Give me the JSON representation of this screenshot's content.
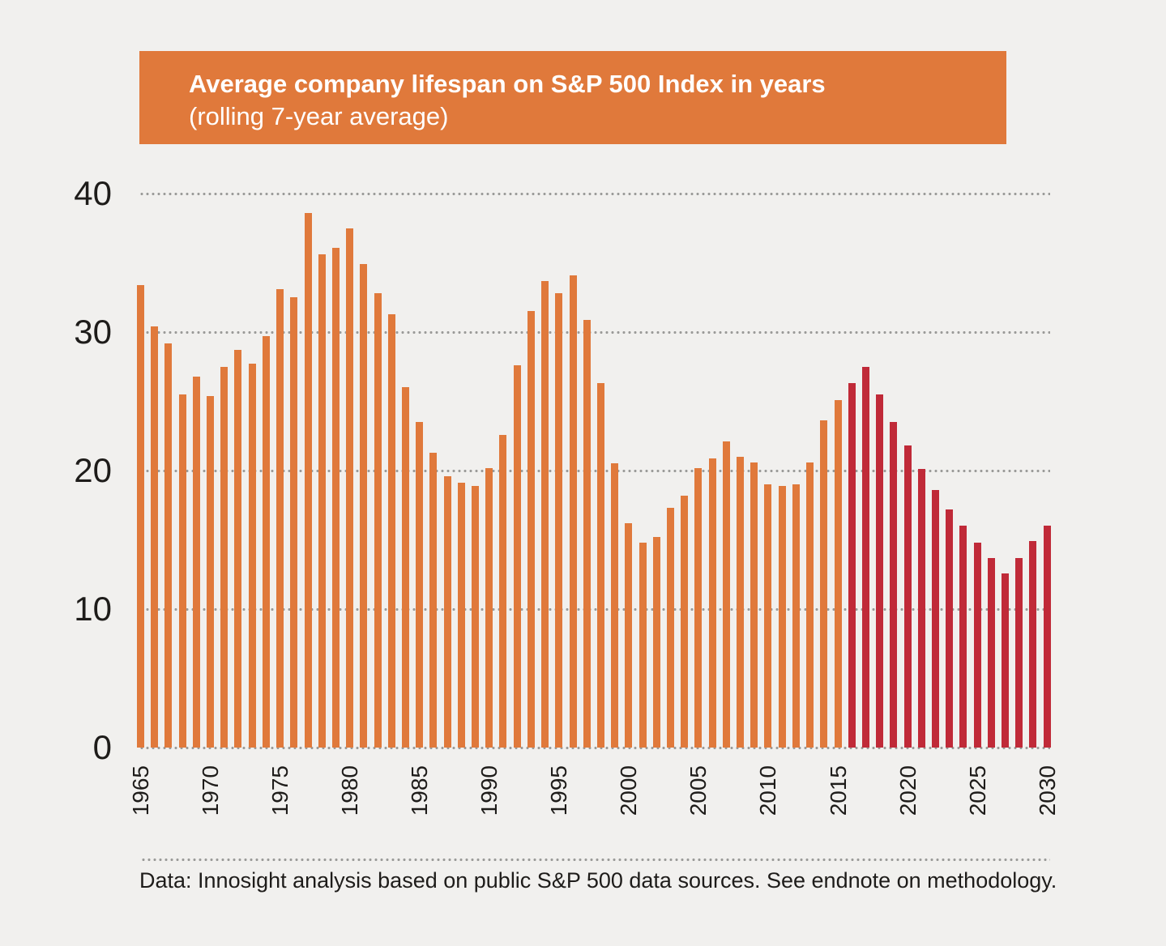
{
  "header": {
    "title": "Average company lifespan on S&P 500 Index in years",
    "subtitle": "(rolling 7-year average)"
  },
  "footer": {
    "note": "Data: Innosight analysis based on public S&P 500 data sources. See endnote on methodology."
  },
  "colors": {
    "background": "#f1f0ee",
    "header_bg": "#e0793b",
    "bar_historical": "#e0793b",
    "bar_forecast": "#c02a38",
    "gridline": "#9b9b99",
    "text": "#1e1c1a"
  },
  "chart_data": {
    "type": "bar",
    "title": "Average company lifespan on S&P 500 Index in years",
    "subtitle": "(rolling 7-year average)",
    "xlabel": "",
    "ylabel": "",
    "ylim": [
      0,
      40
    ],
    "yticks": [
      0,
      10,
      20,
      30,
      40
    ],
    "grid": "horizontal-dotted",
    "legend": "none",
    "x_tick_labels": [
      "1965",
      "1970",
      "1975",
      "1980",
      "1985",
      "1990",
      "1995",
      "2000",
      "2005",
      "2010",
      "2015",
      "2020",
      "2025",
      "2030"
    ],
    "forecast_from_year": 2016,
    "historical_color": "#e0793b",
    "forecast_color": "#c02a38",
    "years": [
      1965,
      1966,
      1967,
      1968,
      1969,
      1970,
      1971,
      1972,
      1973,
      1974,
      1975,
      1976,
      1977,
      1978,
      1979,
      1980,
      1981,
      1982,
      1983,
      1984,
      1985,
      1986,
      1987,
      1988,
      1989,
      1990,
      1991,
      1992,
      1993,
      1994,
      1995,
      1996,
      1997,
      1998,
      1999,
      2000,
      2001,
      2002,
      2003,
      2004,
      2005,
      2006,
      2007,
      2008,
      2009,
      2010,
      2011,
      2012,
      2013,
      2014,
      2015,
      2016,
      2017,
      2018,
      2019,
      2020,
      2021,
      2022,
      2023,
      2024,
      2025,
      2026,
      2027,
      2028,
      2029,
      2030
    ],
    "values": [
      33.4,
      30.4,
      29.2,
      25.5,
      26.8,
      25.4,
      27.5,
      28.7,
      27.7,
      29.7,
      33.1,
      32.5,
      38.6,
      35.6,
      36.1,
      37.5,
      34.9,
      32.8,
      31.3,
      26.0,
      23.5,
      21.3,
      19.6,
      19.1,
      18.9,
      20.2,
      22.6,
      27.6,
      31.5,
      33.7,
      32.8,
      34.1,
      30.9,
      26.3,
      20.5,
      16.2,
      14.8,
      15.2,
      17.3,
      18.2,
      20.2,
      20.9,
      22.1,
      21.0,
      20.6,
      19.0,
      18.9,
      19.0,
      20.6,
      23.6,
      25.1,
      26.3,
      27.5,
      25.5,
      23.5,
      21.8,
      20.1,
      18.6,
      17.2,
      16.0,
      14.8,
      13.7,
      12.6,
      13.7,
      14.9,
      16.0
    ]
  }
}
